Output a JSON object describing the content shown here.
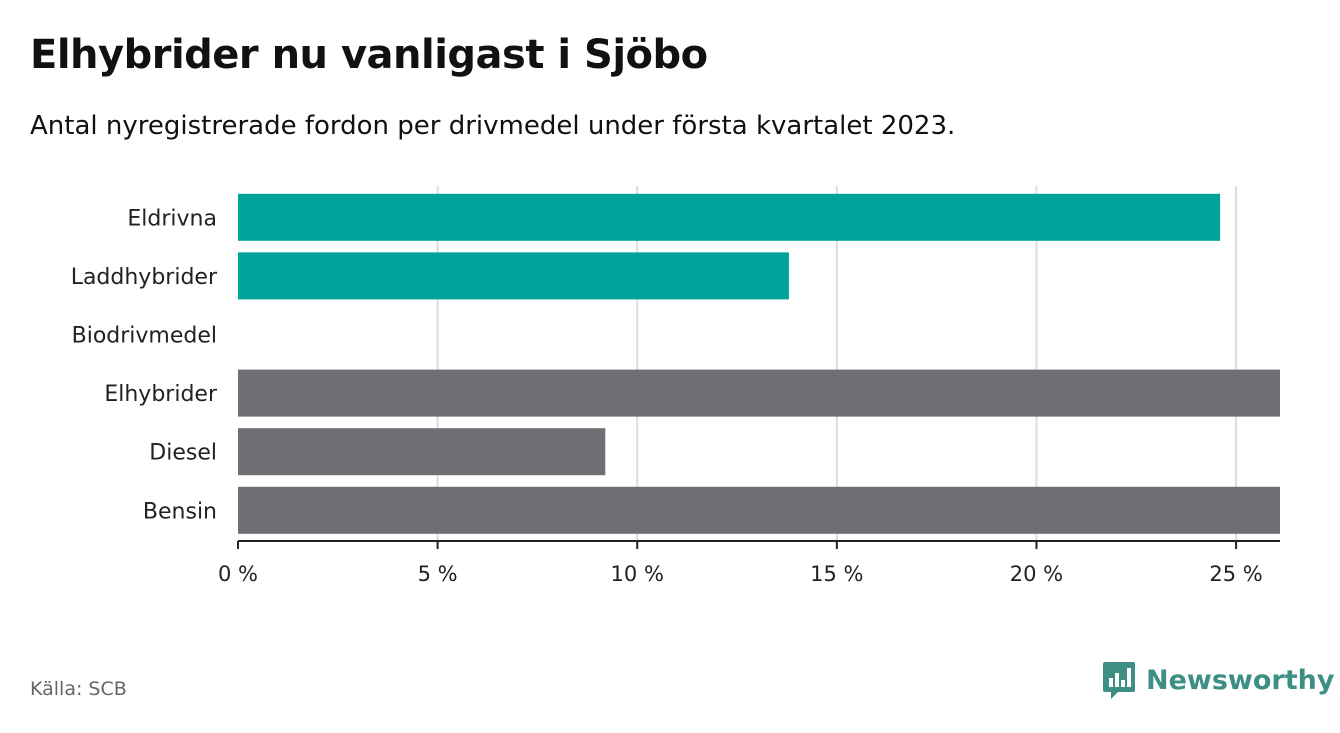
{
  "title": "Elhybrider nu vanligast i Sjöbo",
  "subtitle": "Antal nyregistrerade fordon per drivmedel under första kvartalet 2023.",
  "source": "Källa: SCB",
  "brand": {
    "name": "Newsworthy",
    "icon": "newsworthy-logo-icon",
    "color": "#3d8f86"
  },
  "colors": {
    "green": "#00a39a",
    "gray": "#6f6e74",
    "grid": "#dddddd",
    "axis": "#222222"
  },
  "chart_data": {
    "type": "bar",
    "orientation": "horizontal",
    "categories": [
      "Eldrivna",
      "Laddhybrider",
      "Biodrivmedel",
      "Elhybrider",
      "Diesel",
      "Bensin"
    ],
    "values": [
      24.6,
      13.8,
      0,
      26.1,
      9.2,
      26.1
    ],
    "bar_colors": [
      "green",
      "green",
      "green",
      "gray",
      "gray",
      "gray"
    ],
    "x_ticks": [
      0,
      5,
      10,
      15,
      20,
      25
    ],
    "x_tick_labels": [
      "0 %",
      "5 %",
      "10 %",
      "15 %",
      "20 %",
      "25 %"
    ],
    "xlim": [
      0,
      26.1
    ],
    "grid": true,
    "legend": "none"
  }
}
